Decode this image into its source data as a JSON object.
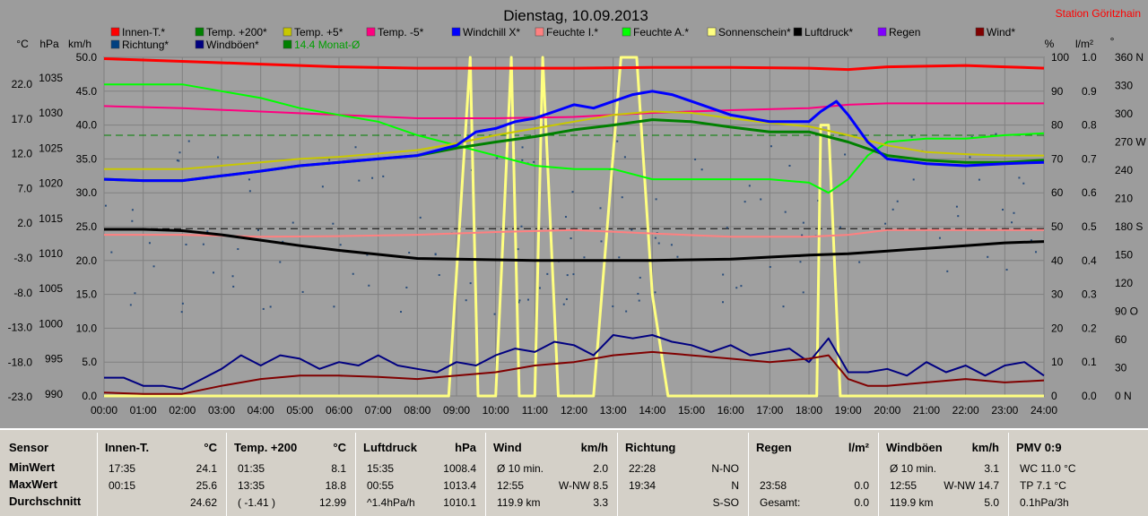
{
  "title": "Dienstag, 10.09.2013",
  "station": "Station Göritzhain",
  "axis_units": {
    "left1": "°C",
    "left2": "hPa",
    "left3": "km/h",
    "right1": "%",
    "right2": "l/m²",
    "right3": "°"
  },
  "legend": [
    {
      "label": "Innen-T.*",
      "color": "#ff0000"
    },
    {
      "label": "Temp. +200*",
      "color": "#008000"
    },
    {
      "label": "Temp. +5*",
      "color": "#c8c800"
    },
    {
      "label": "Temp. -5*",
      "color": "#ff0080"
    },
    {
      "label": "Windchill X*",
      "color": "#0000ff"
    },
    {
      "label": "Feuchte I.*",
      "color": "#ff8080"
    },
    {
      "label": "Feuchte A.*",
      "color": "#00ff00"
    },
    {
      "label": "Sonnenschein*",
      "color": "#ffff80"
    },
    {
      "label": "Luftdruck*",
      "color": "#000000"
    },
    {
      "label": "Regen",
      "color": "#8000ff"
    },
    {
      "label": "Wind*",
      "color": "#800000"
    },
    {
      "label": "Richtung*",
      "color": "#004080"
    },
    {
      "label": "Windböen*",
      "color": "#000080"
    },
    {
      "label": "14.4 Monat-Ø",
      "color": "#008000"
    }
  ],
  "chart_data": {
    "type": "line",
    "x_ticks": [
      "00:00",
      "01:00",
      "02:00",
      "03:00",
      "04:00",
      "05:00",
      "06:00",
      "07:00",
      "08:00",
      "09:00",
      "10:00",
      "11:00",
      "12:00",
      "13:00",
      "14:00",
      "15:00",
      "16:00",
      "17:00",
      "18:00",
      "19:00",
      "20:00",
      "21:00",
      "22:00",
      "23:00",
      "24:00"
    ],
    "y_ticks_celsius": [
      "22.0",
      "17.0",
      "12.0",
      "7.0",
      "2.0",
      "-3.0",
      "-8.0",
      "-13.0",
      "-18.0",
      "-23.0"
    ],
    "y_ticks_hpa": [
      "1035",
      "1030",
      "1025",
      "1020",
      "1015",
      "1010",
      "1005",
      "1000",
      "995",
      "990"
    ],
    "y_ticks_kmh": [
      "50.0",
      "45.0",
      "40.0",
      "35.0",
      "30.0",
      "25.0",
      "20.0",
      "15.0",
      "10.0",
      "5.0",
      "0.0"
    ],
    "y_ticks_percent": [
      "100",
      "90",
      "80",
      "70",
      "60",
      "50",
      "40",
      "30",
      "20",
      "10",
      "0"
    ],
    "y_ticks_rain": [
      "1.0",
      "0.9",
      "0.8",
      "0.7",
      "0.6",
      "0.5",
      "0.4",
      "0.3",
      "0.2",
      "0.1",
      "0.0"
    ],
    "y_ticks_degree": [
      "360 N",
      "330",
      "300",
      "270 W",
      "240",
      "210",
      "180 S",
      "150",
      "120",
      "90 O",
      "60",
      "30",
      "0 N"
    ],
    "kmh_range": [
      0,
      50
    ],
    "hours_range": [
      0,
      24
    ],
    "series": [
      {
        "name": "Innen-T.*",
        "unit": "km/h-scale",
        "color": "#ff0000",
        "width": 3,
        "x": [
          0,
          2,
          4,
          6,
          8,
          10,
          12,
          14,
          16,
          18,
          19,
          20,
          22,
          23,
          24
        ],
        "y": [
          49.8,
          49.4,
          49.0,
          48.6,
          48.4,
          48.4,
          48.4,
          48.5,
          48.5,
          48.4,
          48.2,
          48.6,
          48.8,
          48.6,
          48.4
        ]
      },
      {
        "name": "Temp. -5*",
        "unit": "km/h-scale",
        "color": "#ff0080",
        "width": 2,
        "x": [
          0,
          2,
          4,
          6,
          8,
          10,
          12,
          14,
          16,
          18,
          19,
          20,
          22,
          24
        ],
        "y": [
          42.8,
          42.5,
          42.0,
          41.5,
          41.0,
          41.0,
          41.2,
          41.8,
          42.2,
          42.5,
          43.0,
          43.2,
          43.2,
          43.2
        ]
      },
      {
        "name": "Feuchte A.*",
        "unit": "km/h-scale",
        "color": "#00ff00",
        "width": 2,
        "x": [
          0,
          1,
          2,
          3,
          4,
          5,
          6,
          7,
          8,
          9,
          10,
          11,
          12,
          13,
          14,
          15,
          16,
          17,
          18,
          18.5,
          19,
          19.5,
          20,
          21,
          22,
          23,
          24
        ],
        "y": [
          46.0,
          46.0,
          46.0,
          45.0,
          44.0,
          42.5,
          41.5,
          40.5,
          38.5,
          37.0,
          35.5,
          34.0,
          33.5,
          33.5,
          32.0,
          32.0,
          32.0,
          32.0,
          31.5,
          30.0,
          32.0,
          35.5,
          37.5,
          38.0,
          38.0,
          38.5,
          38.8
        ]
      },
      {
        "name": "Temp. +5*",
        "unit": "km/h-scale",
        "color": "#c8c800",
        "width": 2,
        "x": [
          0,
          1,
          2,
          3,
          4,
          5,
          6,
          7,
          8,
          9,
          10,
          11,
          12,
          13,
          14,
          15,
          16,
          17,
          18,
          19,
          20,
          21,
          22,
          23,
          24
        ],
        "y": [
          33.5,
          33.5,
          33.5,
          34.0,
          34.5,
          35.0,
          35.3,
          35.8,
          36.3,
          37.3,
          38.5,
          39.5,
          40.5,
          41.5,
          42.0,
          41.8,
          41.0,
          40.3,
          39.8,
          38.5,
          37.0,
          36.0,
          35.7,
          35.5,
          35.5
        ]
      },
      {
        "name": "Temp. +200*",
        "unit": "km/h-scale",
        "color": "#008000",
        "width": 3,
        "x": [
          0,
          1,
          2,
          3,
          4,
          5,
          6,
          7,
          8,
          9,
          10,
          11,
          12,
          13,
          14,
          15,
          16,
          17,
          18,
          19,
          20,
          21,
          22,
          23,
          24
        ],
        "y": [
          32.0,
          31.8,
          31.8,
          32.5,
          33.2,
          34.0,
          34.5,
          35.0,
          35.5,
          36.6,
          37.5,
          38.3,
          39.3,
          40.0,
          40.8,
          40.5,
          39.7,
          39.0,
          39.0,
          37.5,
          35.5,
          34.8,
          34.5,
          34.5,
          34.8
        ]
      },
      {
        "name": "Windchill X*",
        "unit": "km/h-scale",
        "color": "#0000ff",
        "width": 3,
        "x": [
          0,
          1,
          2,
          3,
          4,
          5,
          6,
          7,
          8,
          9,
          9.5,
          10,
          10.5,
          11,
          11.5,
          12,
          12.5,
          13,
          13.5,
          14,
          14.5,
          15,
          16,
          17,
          18,
          18.3,
          18.7,
          19,
          19.5,
          20,
          21,
          22,
          23,
          24
        ],
        "y": [
          32.0,
          31.8,
          31.8,
          32.5,
          33.2,
          34.0,
          34.5,
          35.0,
          35.5,
          37.0,
          39.0,
          39.5,
          40.5,
          41.0,
          42.0,
          43.0,
          42.5,
          43.5,
          44.5,
          45.0,
          44.5,
          43.5,
          41.5,
          40.5,
          40.5,
          42.0,
          43.5,
          41.5,
          37.5,
          35.0,
          34.3,
          34.0,
          34.3,
          34.5
        ]
      },
      {
        "name": "Feuchte I.*",
        "unit": "km/h-scale",
        "color": "#ff8080",
        "width": 2,
        "x": [
          0,
          2,
          4,
          6,
          8,
          10,
          12,
          14,
          16,
          18,
          19,
          20,
          22,
          24
        ],
        "y": [
          23.8,
          23.8,
          23.5,
          23.6,
          23.8,
          24.2,
          24.5,
          24.0,
          23.5,
          23.5,
          23.8,
          24.5,
          24.5,
          24.5
        ]
      },
      {
        "name": "Luftdruck*",
        "unit": "km/h-scale",
        "color": "#000000",
        "width": 3,
        "x": [
          0,
          1,
          2,
          3,
          4,
          5,
          6,
          7,
          8,
          9,
          10,
          11,
          12,
          13,
          14,
          15,
          16,
          17,
          18,
          19,
          20,
          21,
          22,
          23,
          24
        ],
        "y": [
          24.6,
          24.6,
          24.4,
          23.8,
          23.0,
          22.2,
          21.5,
          20.9,
          20.3,
          20.2,
          20.1,
          20.0,
          20.0,
          20.0,
          20.0,
          20.1,
          20.2,
          20.5,
          20.8,
          21.0,
          21.4,
          21.8,
          22.2,
          22.6,
          22.8
        ]
      },
      {
        "name": "Windböen*",
        "unit": "km/h-scale",
        "color": "#000080",
        "width": 2,
        "x": [
          0,
          0.5,
          1,
          1.5,
          2,
          2.5,
          3,
          3.5,
          4,
          4.5,
          5,
          5.5,
          6,
          6.5,
          7,
          7.5,
          8,
          8.5,
          9,
          9.5,
          10,
          10.5,
          11,
          11.5,
          12,
          12.5,
          13,
          13.5,
          14,
          14.5,
          15,
          15.5,
          16,
          16.5,
          17,
          17.5,
          18,
          18.5,
          19,
          19.5,
          20,
          20.5,
          21,
          21.5,
          22,
          22.5,
          23,
          23.5,
          24
        ],
        "y": [
          2.7,
          2.7,
          1.5,
          1.5,
          1.0,
          2.5,
          4.0,
          6.0,
          4.5,
          6.0,
          5.5,
          4.0,
          5.0,
          4.5,
          6.0,
          4.5,
          4.0,
          3.5,
          5.0,
          4.5,
          6.0,
          7.0,
          6.5,
          8.0,
          7.5,
          6.0,
          9.0,
          8.5,
          9.0,
          8.0,
          7.5,
          6.5,
          7.5,
          6.0,
          6.5,
          7.0,
          5.0,
          8.5,
          3.5,
          3.5,
          4.0,
          3.0,
          5.0,
          3.5,
          4.5,
          3.0,
          4.5,
          5.0,
          3.0
        ]
      },
      {
        "name": "Wind*",
        "unit": "km/h-scale",
        "color": "#800000",
        "width": 2,
        "x": [
          0,
          1,
          2,
          3,
          4,
          5,
          6,
          7,
          8,
          9,
          10,
          11,
          12,
          13,
          14,
          15,
          16,
          17,
          18,
          18.5,
          19,
          19.5,
          20,
          21,
          22,
          23,
          24
        ],
        "y": [
          0.5,
          0.3,
          0.3,
          1.5,
          2.5,
          3.0,
          3.0,
          2.8,
          2.5,
          3.0,
          3.5,
          4.5,
          5.0,
          6.0,
          6.5,
          6.0,
          5.5,
          5.0,
          5.5,
          6.0,
          2.5,
          1.5,
          1.5,
          2.0,
          2.5,
          2.0,
          2.3
        ]
      },
      {
        "name": "Sonnenschein*",
        "unit": "km/h-scale",
        "color": "#ffff80",
        "width": 3,
        "x": [
          0,
          8.8,
          9.35,
          9.55,
          10.0,
          10.4,
          10.6,
          11.0,
          11.2,
          11.6,
          12.2,
          12.5,
          13.2,
          13.6,
          14.0,
          14.4,
          18.0,
          18.2,
          18.3,
          18.4,
          18.5,
          18.8,
          24
        ],
        "y": [
          0,
          0,
          50,
          0,
          0,
          50,
          0,
          0,
          50,
          0,
          0,
          0,
          50,
          50,
          15,
          0,
          0,
          0,
          40,
          40,
          40,
          0,
          0
        ]
      }
    ],
    "monthly_avg_kmh": 38.5,
    "dashed_reference_kmh": 24.7
  },
  "stats": {
    "labels": {
      "sensor": "Sensor",
      "min": "MinWert",
      "max": "MaxWert",
      "avg": "Durchschnitt"
    },
    "innen": {
      "title": "Innen-T.",
      "unit": "°C",
      "min_time": "17:35",
      "min_val": "24.1",
      "max_time": "00:15",
      "max_val": "25.6",
      "avg_val": "24.62"
    },
    "temp200": {
      "title": "Temp. +200",
      "unit": "°C",
      "min_time": "01:35",
      "min_val": "8.1",
      "max_time": "13:35",
      "max_val": "18.8",
      "avg_note": "( -1.41 )",
      "avg_val": "12.99"
    },
    "druck": {
      "title": "Luftdruck",
      "unit": "hPa",
      "min_time": "15:35",
      "min_val": "1008.4",
      "max_time": "00:55",
      "max_val": "1013.4",
      "avg_note": "^1.4hPa/h",
      "avg_val": "1010.1"
    },
    "wind": {
      "title": "Wind",
      "unit": "km/h",
      "r1a": "Ø 10 min.",
      "r1v": "2.0",
      "r2a": "12:55",
      "r2b": "W-NW 8.5",
      "r3a": "119.9 km",
      "r3v": "3.3"
    },
    "richtung": {
      "title": "Richtung",
      "r1a": "22:28",
      "r1v": "N-NO",
      "r2a": "19:34",
      "r2v": "N",
      "r3v": "S-SO"
    },
    "regen": {
      "title": "Regen",
      "unit": "l/m²",
      "r2a": "23:58",
      "r2v": "0.0",
      "r3a": "Gesamt:",
      "r3v": "0.0"
    },
    "boen": {
      "title": "Windböen",
      "unit": "km/h",
      "r1a": "Ø 10 min.",
      "r1v": "3.1",
      "r2a": "12:55",
      "r2b": "W-NW 14.7",
      "r3a": "119.9 km",
      "r3v": "5.0"
    },
    "pmv": {
      "title": "PMV 0:9",
      "r1": "WC 11.0 °C",
      "r2": "TP 7.1 °C",
      "r3": "0.1hPa/3h"
    }
  }
}
